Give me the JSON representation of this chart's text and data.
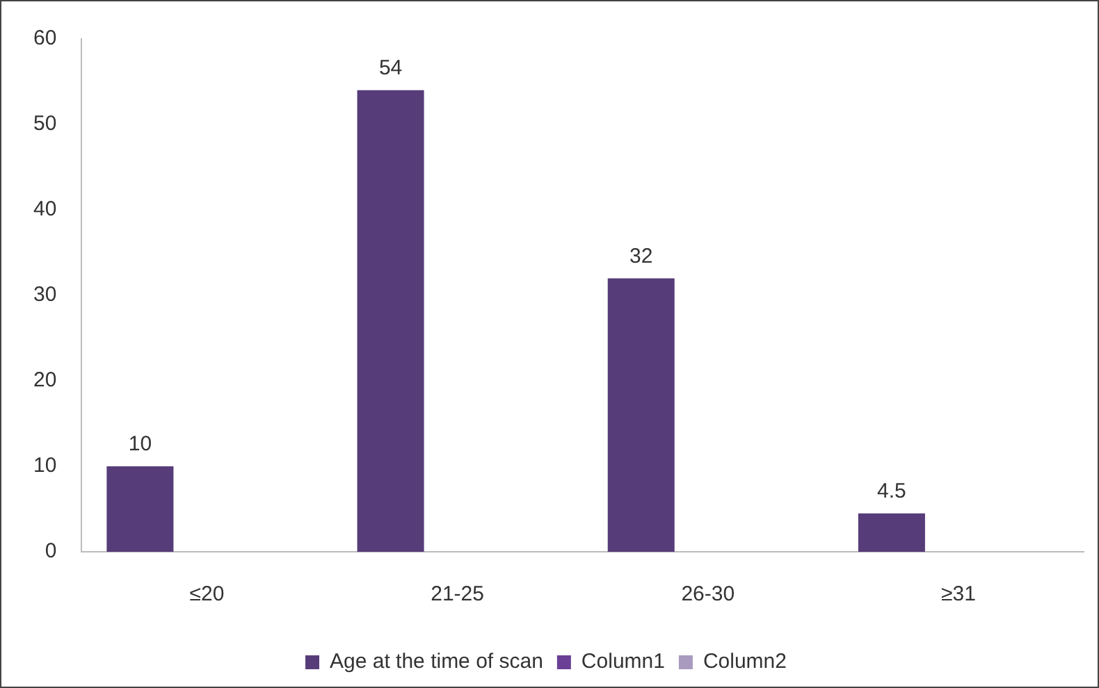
{
  "chart_data": {
    "type": "bar",
    "categories": [
      "≤20",
      "21-25",
      "26-30",
      "≥31"
    ],
    "series": [
      {
        "name": "Age at the time of scan",
        "color": "#573c7a",
        "values": [
          10,
          54,
          32,
          4.5
        ]
      },
      {
        "name": "Column1",
        "color": "#6b3f96",
        "values": [
          null,
          null,
          null,
          null
        ]
      },
      {
        "name": "Column2",
        "color": "#a89bbf",
        "values": [
          null,
          null,
          null,
          null
        ]
      }
    ],
    "ylim": [
      0,
      60
    ],
    "yticks": [
      0,
      10,
      20,
      30,
      40,
      50,
      60
    ],
    "grid": false,
    "legend": "bottom",
    "data_labels": true
  }
}
